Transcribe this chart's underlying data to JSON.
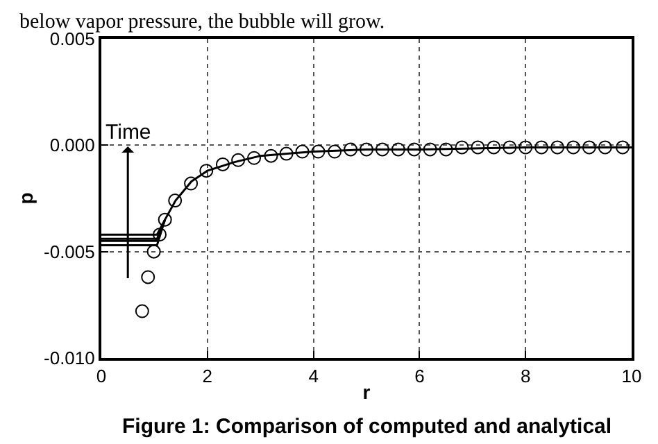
{
  "chart_data": {
    "type": "scatter",
    "xlabel": "r",
    "ylabel": "p",
    "annotations": [
      "below vapor pressure, the bubble will grow.",
      "Figure 1: Comparison of computed and analytical",
      "Time"
    ],
    "xlim": [
      0,
      10
    ],
    "xticks": [
      0,
      2,
      4,
      6,
      8,
      10
    ],
    "ylim": [
      -0.01,
      0.005
    ],
    "yticks": [
      {
        "value": -0.01,
        "label": "-0.010"
      },
      {
        "value": -0.005,
        "label": "-0.005"
      },
      {
        "value": 0,
        "label": "0.000"
      },
      {
        "value": 0.005,
        "label": "0.005"
      }
    ],
    "grid": true,
    "series": [
      {
        "type": "line",
        "color": "#000000",
        "marker": "none",
        "x": [
          0,
          1.05,
          1.2,
          1.4,
          1.7,
          2.0,
          2.5,
          3.0,
          3.5,
          4.0,
          5.0,
          6.0,
          8.0,
          10.0
        ],
        "values": [
          -0.0042,
          -0.0042,
          -0.0035,
          -0.0026,
          -0.0017,
          -0.0012,
          -0.0008,
          -0.0005,
          -0.0004,
          -0.0003,
          -0.0002,
          -0.0002,
          -0.0001,
          -0.0001
        ]
      },
      {
        "type": "line",
        "color": "#000000",
        "marker": "none",
        "x": [
          0,
          1.05,
          1.2
        ],
        "values": [
          -0.0044,
          -0.0044,
          -0.0035
        ]
      },
      {
        "type": "line",
        "color": "#000000",
        "marker": "none",
        "x": [
          0,
          1.05,
          1.2
        ],
        "values": [
          -0.0045,
          -0.0045,
          -0.0035
        ]
      },
      {
        "type": "line",
        "color": "#000000",
        "marker": "none",
        "x": [
          0,
          1.05,
          1.2
        ],
        "values": [
          -0.0047,
          -0.0047,
          -0.0035
        ]
      },
      {
        "color": "#000000",
        "marker": "circle",
        "x": [
          0.77,
          0.88,
          0.99,
          1.1,
          1.2,
          1.39,
          1.69,
          1.98,
          2.29,
          2.58,
          2.88,
          3.2,
          3.49,
          3.79,
          4.09,
          4.4,
          4.7,
          5.0,
          5.3,
          5.6,
          5.9,
          6.2,
          6.5,
          6.8,
          7.1,
          7.4,
          7.7,
          8.0,
          8.3,
          8.6,
          8.9,
          9.2,
          9.5,
          9.83
        ],
        "values": [
          -0.0078,
          -0.0062,
          -0.005,
          -0.0042,
          -0.0035,
          -0.0026,
          -0.0018,
          -0.0012,
          -0.0009,
          -0.0007,
          -0.0006,
          -0.0005,
          -0.0004,
          -0.0003,
          -0.0003,
          -0.0003,
          -0.0002,
          -0.0002,
          -0.0002,
          -0.0002,
          -0.0002,
          -0.0002,
          -0.0002,
          -0.0001,
          -0.0001,
          -0.0001,
          -0.0001,
          -0.0001,
          -0.0001,
          -0.0001,
          -0.0001,
          -0.0001,
          -0.0001,
          -0.0001
        ]
      }
    ]
  }
}
